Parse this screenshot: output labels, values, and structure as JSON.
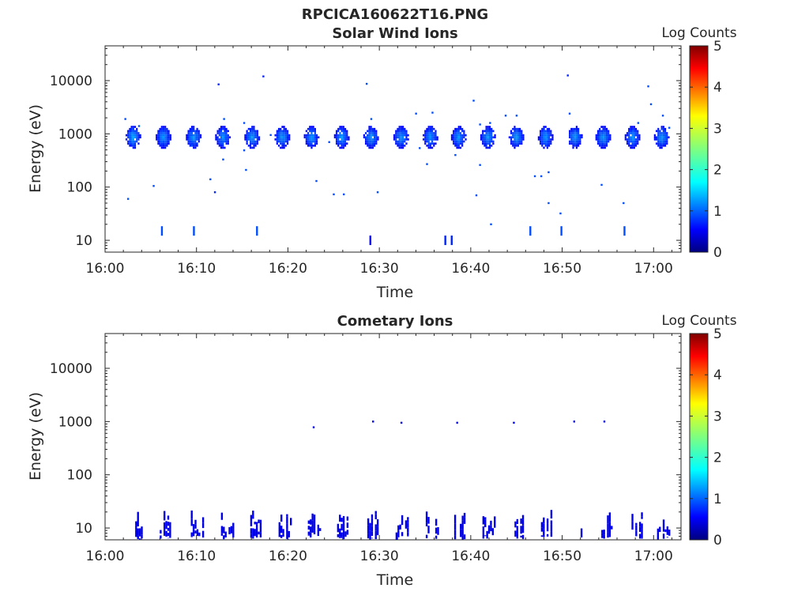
{
  "figure_title": "RPCICA160622T16.PNG",
  "chart_data": [
    {
      "type": "heatmap",
      "title": "Solar Wind Ions",
      "xlabel": "Time",
      "ylabel": "Energy (eV)",
      "x_ticks": [
        "16:00",
        "16:10",
        "16:20",
        "16:30",
        "16:40",
        "16:50",
        "17:00"
      ],
      "y_ticks": [
        "10",
        "100",
        "1000",
        "10000"
      ],
      "x_range_min": [
        0,
        63
      ],
      "y_range_ev": [
        6,
        45000
      ],
      "y_scale": "log",
      "colorbar": {
        "label": "Log Counts",
        "ticks": [
          "0",
          "1",
          "2",
          "3",
          "4",
          "5"
        ],
        "range": [
          0,
          5
        ],
        "colormap": "jet"
      },
      "blobs": [
        {
          "t": 3.0,
          "e": 900,
          "v": 1.4
        },
        {
          "t": 6.3,
          "e": 900,
          "v": 1.3
        },
        {
          "t": 9.6,
          "e": 900,
          "v": 1.3
        },
        {
          "t": 12.8,
          "e": 900,
          "v": 1.3
        },
        {
          "t": 16.0,
          "e": 900,
          "v": 1.3
        },
        {
          "t": 19.3,
          "e": 900,
          "v": 1.3
        },
        {
          "t": 22.5,
          "e": 900,
          "v": 1.3
        },
        {
          "t": 25.8,
          "e": 900,
          "v": 1.3
        },
        {
          "t": 29.0,
          "e": 900,
          "v": 1.3
        },
        {
          "t": 32.3,
          "e": 900,
          "v": 1.3
        },
        {
          "t": 35.5,
          "e": 900,
          "v": 1.3
        },
        {
          "t": 38.6,
          "e": 900,
          "v": 1.3
        },
        {
          "t": 41.8,
          "e": 900,
          "v": 1.3
        },
        {
          "t": 44.9,
          "e": 900,
          "v": 1.3
        },
        {
          "t": 48.1,
          "e": 900,
          "v": 1.3
        },
        {
          "t": 51.3,
          "e": 900,
          "v": 1.3
        },
        {
          "t": 54.4,
          "e": 900,
          "v": 1.3
        },
        {
          "t": 57.6,
          "e": 900,
          "v": 1.3
        },
        {
          "t": 60.8,
          "e": 900,
          "v": 1.3
        }
      ],
      "bars": [
        {
          "t": 6.2,
          "e": 15,
          "v": 1.0
        },
        {
          "t": 9.7,
          "e": 15,
          "v": 1.0
        },
        {
          "t": 16.6,
          "e": 15,
          "v": 1.0
        },
        {
          "t": 29.0,
          "e": 10,
          "v": 0.6
        },
        {
          "t": 37.2,
          "e": 10,
          "v": 0.8
        },
        {
          "t": 37.9,
          "e": 10,
          "v": 0.8
        },
        {
          "t": 46.5,
          "e": 15,
          "v": 1.0
        },
        {
          "t": 49.9,
          "e": 15,
          "v": 1.0
        },
        {
          "t": 56.8,
          "e": 15,
          "v": 1.0
        }
      ],
      "dots": [
        {
          "t": 2.2,
          "e": 1900,
          "v": 1.0
        },
        {
          "t": 3.7,
          "e": 1400,
          "v": 1.0
        },
        {
          "t": 2.5,
          "e": 60,
          "v": 1.0
        },
        {
          "t": 5.3,
          "e": 105,
          "v": 1.0
        },
        {
          "t": 9.5,
          "e": 600,
          "v": 1.0
        },
        {
          "t": 11.5,
          "e": 140,
          "v": 1.0
        },
        {
          "t": 12.0,
          "e": 80,
          "v": 0.8
        },
        {
          "t": 12.4,
          "e": 8500,
          "v": 0.8
        },
        {
          "t": 13.0,
          "e": 1900,
          "v": 1.0
        },
        {
          "t": 12.9,
          "e": 330,
          "v": 1.0
        },
        {
          "t": 15.2,
          "e": 1600,
          "v": 1.0
        },
        {
          "t": 15.2,
          "e": 490,
          "v": 1.0
        },
        {
          "t": 15.4,
          "e": 210,
          "v": 1.0
        },
        {
          "t": 17.3,
          "e": 12000,
          "v": 0.8
        },
        {
          "t": 18.1,
          "e": 950,
          "v": 1.0
        },
        {
          "t": 23.1,
          "e": 130,
          "v": 1.0
        },
        {
          "t": 24.5,
          "e": 700,
          "v": 1.0
        },
        {
          "t": 25.0,
          "e": 73,
          "v": 1.0
        },
        {
          "t": 26.1,
          "e": 73,
          "v": 1.0
        },
        {
          "t": 28.6,
          "e": 8700,
          "v": 1.0
        },
        {
          "t": 29.1,
          "e": 1900,
          "v": 1.0
        },
        {
          "t": 29.8,
          "e": 80,
          "v": 1.0
        },
        {
          "t": 34.0,
          "e": 2400,
          "v": 1.0
        },
        {
          "t": 34.4,
          "e": 540,
          "v": 1.0
        },
        {
          "t": 35.2,
          "e": 270,
          "v": 1.0
        },
        {
          "t": 35.8,
          "e": 2500,
          "v": 1.0
        },
        {
          "t": 38.3,
          "e": 400,
          "v": 1.0
        },
        {
          "t": 40.3,
          "e": 4200,
          "v": 1.0
        },
        {
          "t": 40.6,
          "e": 70,
          "v": 1.0
        },
        {
          "t": 41.0,
          "e": 1500,
          "v": 1.0
        },
        {
          "t": 41.0,
          "e": 260,
          "v": 1.0
        },
        {
          "t": 42.1,
          "e": 1600,
          "v": 1.0
        },
        {
          "t": 42.2,
          "e": 20,
          "v": 1.0
        },
        {
          "t": 43.8,
          "e": 2200,
          "v": 1.0
        },
        {
          "t": 45.0,
          "e": 2200,
          "v": 1.0
        },
        {
          "t": 47.0,
          "e": 160,
          "v": 1.0
        },
        {
          "t": 47.7,
          "e": 160,
          "v": 1.0
        },
        {
          "t": 48.5,
          "e": 190,
          "v": 1.0
        },
        {
          "t": 48.5,
          "e": 50,
          "v": 1.0
        },
        {
          "t": 49.8,
          "e": 32,
          "v": 1.0
        },
        {
          "t": 50.6,
          "e": 12500,
          "v": 0.8
        },
        {
          "t": 50.8,
          "e": 2400,
          "v": 1.0
        },
        {
          "t": 54.3,
          "e": 110,
          "v": 1.0
        },
        {
          "t": 56.7,
          "e": 50,
          "v": 1.0
        },
        {
          "t": 58.3,
          "e": 1600,
          "v": 1.0
        },
        {
          "t": 59.4,
          "e": 7800,
          "v": 1.0
        },
        {
          "t": 59.7,
          "e": 3600,
          "v": 1.0
        },
        {
          "t": 61.0,
          "e": 2200,
          "v": 1.0
        },
        {
          "t": 61.7,
          "e": 1300,
          "v": 1.0
        }
      ]
    },
    {
      "type": "heatmap",
      "title": "Cometary Ions",
      "xlabel": "Time",
      "ylabel": "Energy (eV)",
      "x_ticks": [
        "16:00",
        "16:10",
        "16:20",
        "16:30",
        "16:40",
        "16:50",
        "17:00"
      ],
      "y_ticks": [
        "10",
        "100",
        "1000",
        "10000"
      ],
      "x_range_min": [
        0,
        63
      ],
      "y_range_ev": [
        6,
        45000
      ],
      "y_scale": "log",
      "colorbar": {
        "label": "Log Counts",
        "ticks": [
          "0",
          "1",
          "2",
          "3",
          "4",
          "5"
        ],
        "range": [
          0,
          5
        ],
        "colormap": "jet"
      },
      "blobs": [],
      "clusters": [
        {
          "t": 3.5,
          "v": 0.5
        },
        {
          "t": 6.6,
          "v": 0.5
        },
        {
          "t": 10.0,
          "v": 0.5
        },
        {
          "t": 13.3,
          "v": 0.5
        },
        {
          "t": 16.5,
          "v": 0.5
        },
        {
          "t": 19.6,
          "v": 0.5
        },
        {
          "t": 22.8,
          "v": 0.5
        },
        {
          "t": 26.0,
          "v": 0.5
        },
        {
          "t": 29.1,
          "v": 0.5
        },
        {
          "t": 32.4,
          "v": 0.5
        },
        {
          "t": 35.7,
          "v": 0.5
        },
        {
          "t": 38.6,
          "v": 0.5
        },
        {
          "t": 41.9,
          "v": 0.5
        },
        {
          "t": 45.2,
          "v": 0.5
        },
        {
          "t": 48.3,
          "v": 0.5
        },
        {
          "t": 51.6,
          "v": 0.5
        },
        {
          "t": 54.9,
          "v": 0.5
        },
        {
          "t": 58.0,
          "v": 0.5
        },
        {
          "t": 61.0,
          "v": 0.5
        }
      ],
      "dots": [
        {
          "t": 22.8,
          "e": 780,
          "v": 0.5
        },
        {
          "t": 29.3,
          "e": 1000,
          "v": 0.5
        },
        {
          "t": 32.4,
          "e": 950,
          "v": 0.5
        },
        {
          "t": 38.5,
          "e": 950,
          "v": 0.5
        },
        {
          "t": 44.7,
          "e": 950,
          "v": 0.5
        },
        {
          "t": 51.3,
          "e": 1000,
          "v": 0.5
        },
        {
          "t": 54.6,
          "e": 1000,
          "v": 0.5
        }
      ],
      "bars": []
    }
  ]
}
